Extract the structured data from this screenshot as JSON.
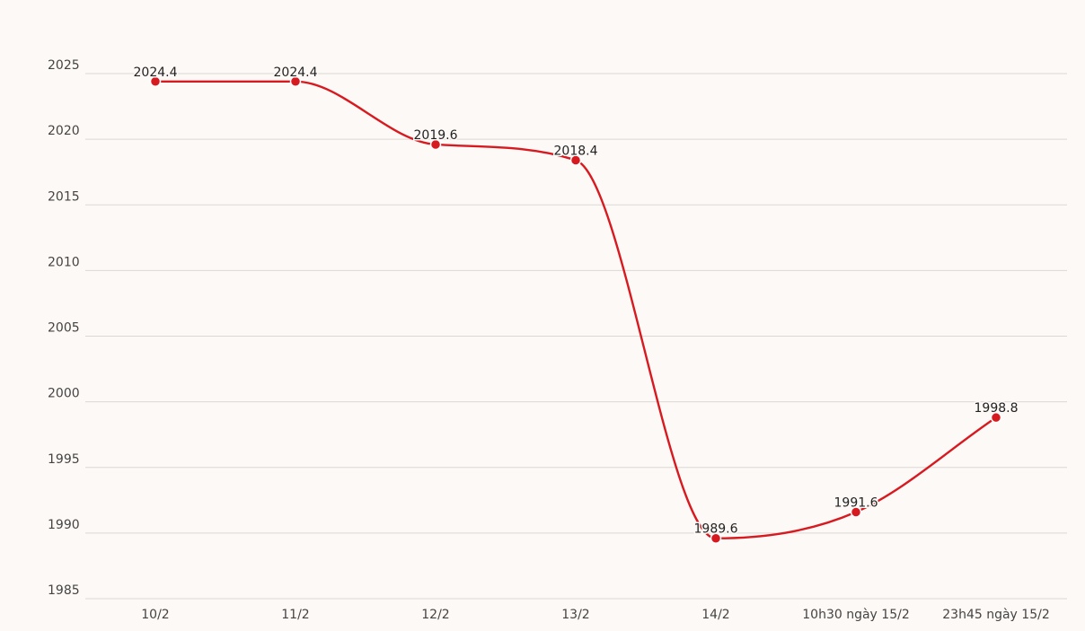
{
  "chart_data": {
    "type": "line",
    "categories": [
      "10/2",
      "11/2",
      "12/2",
      "13/2",
      "14/2",
      "10h30 ngày 15/2",
      "23h45 ngày 15/2"
    ],
    "values": [
      2024.4,
      2024.4,
      2019.6,
      2018.4,
      1989.6,
      1991.6,
      1998.8
    ],
    "data_labels": [
      "2024.4",
      "2024.4",
      "2019.6",
      "2018.4",
      "1989.6",
      "1991.6",
      "1998.8"
    ],
    "yticks": [
      "1985",
      "1990",
      "1995",
      "2000",
      "2005",
      "2010",
      "2015",
      "2020",
      "2025"
    ],
    "ylim": [
      1985,
      2025
    ],
    "title": "",
    "xlabel": "",
    "ylabel": "",
    "grid": true,
    "smooth": true,
    "line_color": "#d71920",
    "background_color": "#fdf9f6"
  }
}
